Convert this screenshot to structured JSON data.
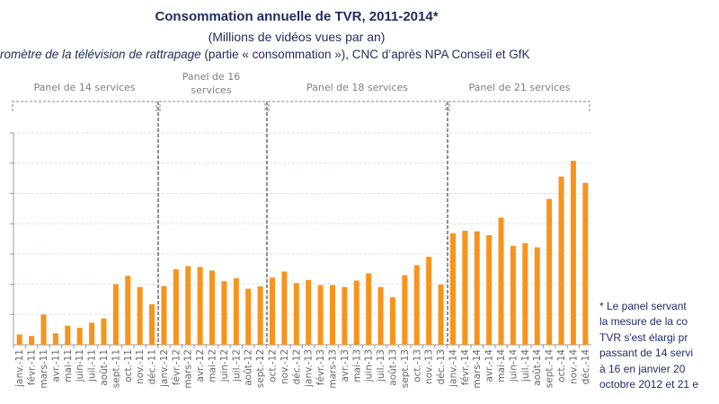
{
  "header": {
    "title": "Consommation annuelle de TVR, 2011-2014*",
    "subtitle": "(Millions de vidéos vues par an)",
    "source_italic": "romètre de la télévision de rattrapage",
    "source_rest": " (partie « consommation »), CNC d’après NPA Conseil et GfK"
  },
  "panels": [
    "Panel de 14 services",
    "Panel de 16 services",
    "Panel de 18 services",
    "Panel de 21 services"
  ],
  "footnote": [
    "* Le panel servant",
    "la mesure de la co",
    "TVR s'est élargi pr",
    "passant de 14 servi",
    "à 16 en janvier 20",
    "octobre 2012 et 21 e"
  ],
  "chart_data": {
    "type": "bar",
    "title": "Consommation annuelle de TVR, 2011-2014*",
    "xlabel": "",
    "ylabel": "",
    "y_tick_labels_shown": false,
    "ylim": [
      0,
      7
    ],
    "grid": true,
    "bar_color": "#f7941d",
    "categories": [
      "janv.-11",
      "févr.-11",
      "mars-11",
      "avr.-11",
      "mai-11",
      "juin-11",
      "juil.-11",
      "août-11",
      "sept.-11",
      "oct.-11",
      "nov.-11",
      "déc.-11",
      "janv.-12",
      "févr.-12",
      "mars-12",
      "avr.-12",
      "mai-12",
      "juin-12",
      "juil.-12",
      "août-12",
      "sept.-12",
      "oct.-12",
      "nov.-12",
      "déc.-12",
      "janv.-13",
      "févr.-13",
      "mars-13",
      "avr.-13",
      "mai-13",
      "juin-13",
      "juil.-13",
      "août-13",
      "sept.-13",
      "oct.-13",
      "nov.-13",
      "déc.-13",
      "janv.-14",
      "févr.-14",
      "mars-14",
      "avr.-14",
      "mai-14",
      "juin-14",
      "juil.-14",
      "août-14",
      "sept.-14",
      "oct.-14",
      "nov.-14",
      "déc.-14"
    ],
    "values": [
      0.34,
      0.29,
      1.0,
      0.38,
      0.63,
      0.56,
      0.73,
      0.87,
      2.0,
      2.28,
      1.91,
      1.34,
      1.94,
      2.5,
      2.6,
      2.57,
      2.45,
      2.1,
      2.2,
      1.85,
      1.93,
      2.22,
      2.42,
      2.04,
      2.14,
      1.97,
      1.97,
      1.91,
      2.12,
      2.36,
      1.91,
      1.57,
      2.3,
      2.63,
      2.91,
      1.99,
      3.68,
      3.77,
      3.75,
      3.62,
      4.2,
      3.27,
      3.36,
      3.22,
      4.82,
      5.56,
      6.08,
      5.35
    ]
  }
}
